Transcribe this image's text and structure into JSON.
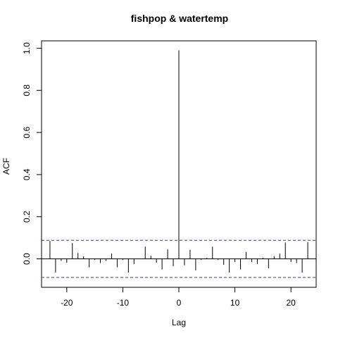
{
  "chart_data": {
    "type": "bar",
    "title": "fishpop & watertemp",
    "xlabel": "Lag",
    "ylabel": "ACF",
    "xlim": [
      -24.5,
      24.5
    ],
    "ylim": [
      -0.135,
      1.035
    ],
    "xticks": [
      -20,
      -10,
      0,
      10,
      20
    ],
    "yticks": [
      0.0,
      0.2,
      0.4,
      0.6,
      0.8,
      1.0
    ],
    "ytick_labels": [
      "0.0",
      "0.2",
      "0.4",
      "0.6",
      "0.8",
      "1.0"
    ],
    "confidence_band": [
      -0.088,
      0.088
    ],
    "confidence_color": "#3333cc",
    "lags": [
      -23,
      -22,
      -21,
      -20,
      -19,
      -18,
      -17,
      -16,
      -15,
      -14,
      -13,
      -12,
      -11,
      -10,
      -9,
      -8,
      -7,
      -6,
      -5,
      -4,
      -3,
      -2,
      -1,
      0,
      1,
      2,
      3,
      4,
      5,
      6,
      7,
      8,
      9,
      10,
      11,
      12,
      13,
      14,
      15,
      16,
      17,
      18,
      19,
      20,
      21,
      22,
      23
    ],
    "values": [
      0.085,
      -0.065,
      -0.01,
      -0.018,
      0.075,
      0.028,
      0.012,
      -0.04,
      -0.005,
      -0.02,
      -0.01,
      0.025,
      -0.04,
      -0.005,
      -0.065,
      -0.025,
      0.0,
      0.058,
      0.015,
      -0.018,
      -0.05,
      0.045,
      -0.035,
      0.99,
      -0.03,
      0.043,
      -0.055,
      -0.005,
      0.005,
      0.058,
      -0.005,
      -0.028,
      -0.065,
      -0.015,
      -0.05,
      0.033,
      -0.015,
      -0.025,
      0.005,
      -0.045,
      0.012,
      0.025,
      0.078,
      -0.015,
      -0.02,
      -0.065,
      0.08
    ]
  }
}
